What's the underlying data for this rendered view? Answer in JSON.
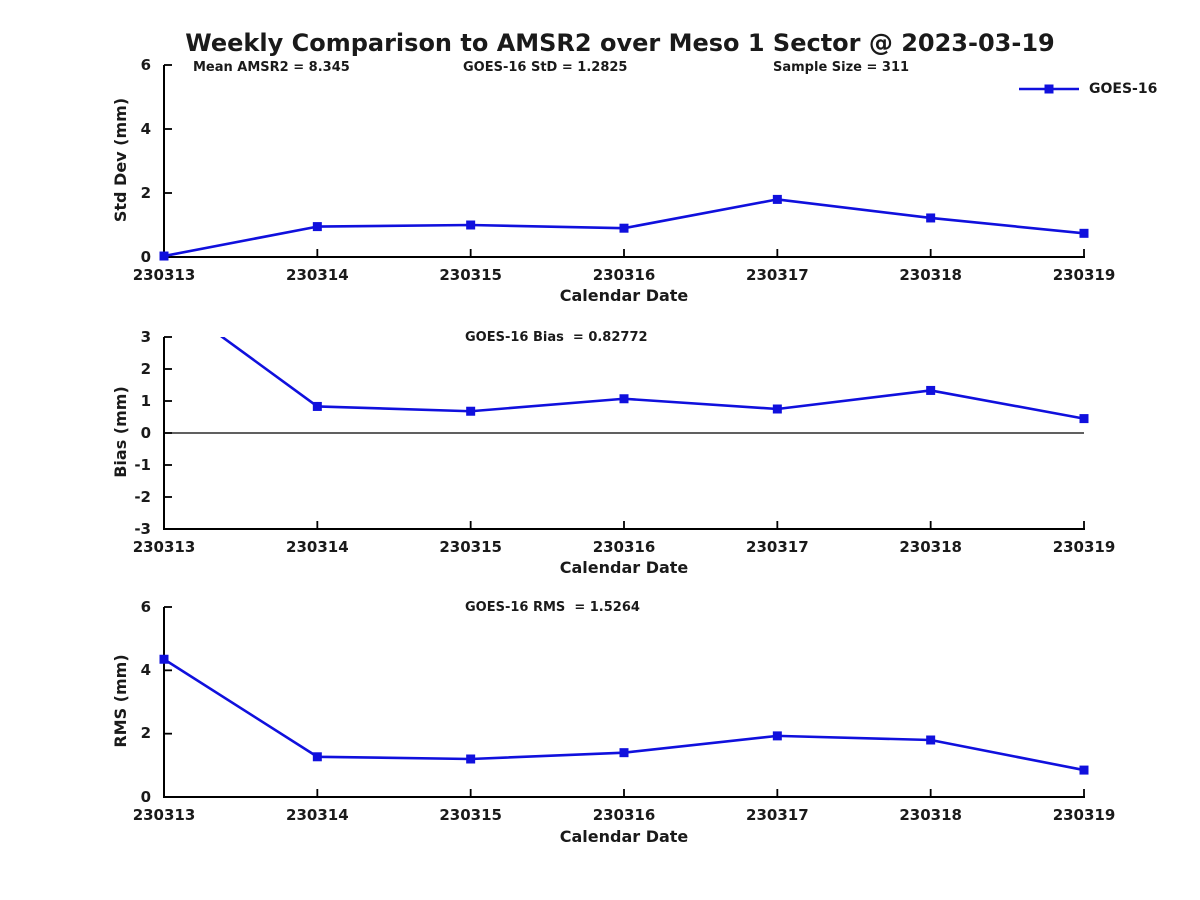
{
  "title": "Weekly Comparison to AMSR2 over Meso 1 Sector @ 2023-03-19",
  "colors": {
    "series_blue": "#1010dd",
    "axis_black": "#000000",
    "text_black": "#1a1a1a"
  },
  "legend": {
    "label": "GOES-16",
    "position": "top-right",
    "marker": "square"
  },
  "chart_data": [
    {
      "type": "line",
      "name": "std-dev",
      "xlabel": "Calendar Date",
      "ylabel": "Std Dev (mm)",
      "categories": [
        "230313",
        "230314",
        "230315",
        "230316",
        "230317",
        "230318",
        "230319"
      ],
      "series": [
        {
          "name": "GOES-16",
          "marker": "square",
          "values": [
            0.03,
            0.95,
            1.0,
            0.9,
            1.8,
            1.22,
            0.74
          ]
        }
      ],
      "ylim": [
        0,
        6
      ],
      "yticks": [
        0,
        2,
        4,
        6
      ],
      "grid": false,
      "zero_line": false,
      "annotations": [
        "Mean AMSR2 = 8.345",
        "GOES-16 StD = 1.2825",
        "Sample Size = 311"
      ]
    },
    {
      "type": "line",
      "name": "bias",
      "xlabel": "Calendar Date",
      "ylabel": "Bias (mm)",
      "categories": [
        "230313",
        "230314",
        "230315",
        "230316",
        "230317",
        "230318",
        "230319"
      ],
      "series": [
        {
          "name": "GOES-16",
          "marker": "square",
          "values": [
            4.33,
            0.83,
            0.68,
            1.07,
            0.75,
            1.33,
            0.45
          ]
        }
      ],
      "ylim": [
        -3,
        3
      ],
      "yticks": [
        -3,
        -2,
        -1,
        0,
        1,
        2,
        3
      ],
      "grid": false,
      "zero_line": true,
      "annotations": [
        "GOES-16 Bias  = 0.82772"
      ]
    },
    {
      "type": "line",
      "name": "rms",
      "xlabel": "Calendar Date",
      "ylabel": "RMS (mm)",
      "categories": [
        "230313",
        "230314",
        "230315",
        "230316",
        "230317",
        "230318",
        "230319"
      ],
      "series": [
        {
          "name": "GOES-16",
          "marker": "square",
          "values": [
            4.35,
            1.27,
            1.2,
            1.4,
            1.93,
            1.8,
            0.85
          ]
        }
      ],
      "ylim": [
        0,
        6
      ],
      "yticks": [
        0,
        2,
        4,
        6
      ],
      "grid": false,
      "zero_line": false,
      "annotations": [
        "GOES-16 RMS  = 1.5264"
      ]
    }
  ]
}
